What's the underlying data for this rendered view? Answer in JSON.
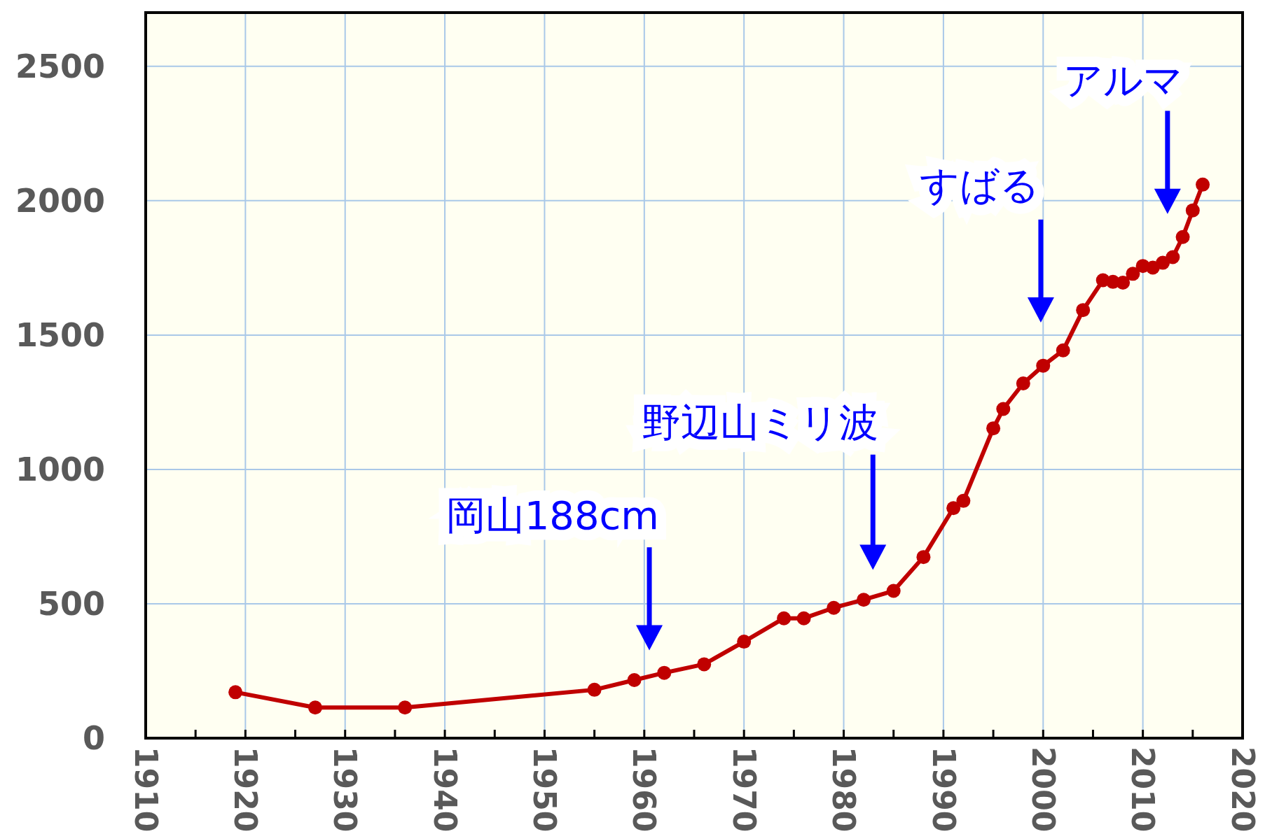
{
  "chart_data": {
    "type": "line",
    "x": [
      1919,
      1927,
      1936,
      1955,
      1959,
      1962,
      1966,
      1970,
      1974,
      1976,
      1979,
      1982,
      1985,
      1988,
      1991,
      1992,
      1995,
      1996,
      1998,
      2000,
      2002,
      2004,
      2006,
      2007,
      2008,
      2009,
      2010,
      2011,
      2012,
      2013,
      2014,
      2015,
      2016
    ],
    "series": [
      {
        "color": "#c00000",
        "values": [
          171,
          114,
          114,
          180,
          216,
          243,
          275,
          359,
          446,
          446,
          485,
          515,
          548,
          674,
          856,
          883,
          1153,
          1225,
          1320,
          1386,
          1443,
          1593,
          1704,
          1698,
          1695,
          1728,
          1757,
          1751,
          1769,
          1790,
          1865,
          1964,
          2060
        ]
      }
    ],
    "xlim": [
      1910,
      2020
    ],
    "xticks": [
      1910,
      {
        "value": 1915,
        "label": null
      },
      1920,
      {
        "value": 1925,
        "label": null
      },
      1930,
      {
        "value": 1935,
        "label": null
      },
      1940,
      {
        "value": 1945,
        "label": null
      },
      1950,
      {
        "value": 1955,
        "label": null
      },
      1960,
      {
        "value": 1965,
        "label": null
      },
      1970,
      {
        "value": 1975,
        "label": null
      },
      1980,
      {
        "value": 1985,
        "label": null
      },
      1990,
      {
        "value": 1995,
        "label": null
      },
      2000,
      {
        "value": 2005,
        "label": null
      },
      2010,
      {
        "value": 2015,
        "label": null
      },
      2020
    ],
    "ylim": [
      0,
      2700
    ],
    "yticks": [
      0,
      500,
      1000,
      1500,
      2000,
      2500
    ],
    "grid": true,
    "marker": "circle",
    "line_style": "solid",
    "annotations": [
      "岡山188cm",
      "野辺山ミリ波",
      "すばる",
      "アルマ"
    ]
  }
}
